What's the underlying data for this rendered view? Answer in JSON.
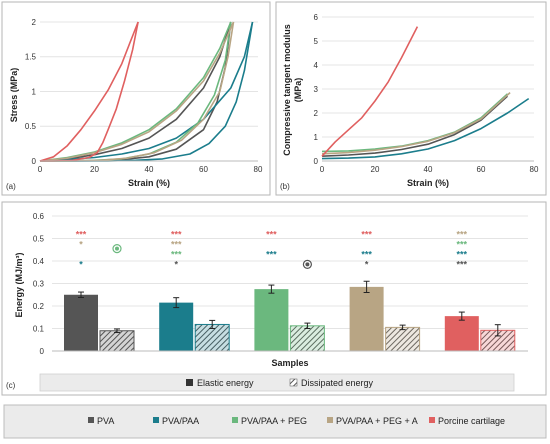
{
  "colors": {
    "PVA": "#555555",
    "PVA/PAA": "#1b7d8c",
    "PVA/PAA + PEG": "#6bb87e",
    "PVA/PAA + PEG + A": "#b8a584",
    "Porcine cartilage": "#e06060"
  },
  "chart_data": [
    {
      "id": "a",
      "type": "line",
      "panel_label": "(a)",
      "xlabel": "Strain (%)",
      "ylabel": "Stress (MPa)",
      "xlim": [
        0,
        80
      ],
      "ylim": [
        0,
        2.1
      ],
      "xticks": [
        0,
        20,
        40,
        60,
        80
      ],
      "yticks": [
        0,
        0.5,
        1,
        1.5,
        2
      ],
      "ytick_labels": [
        "0",
        "0.5",
        "1",
        "1.5",
        "2"
      ],
      "series": [
        {
          "name": "PVA",
          "curves": [
            {
              "x": [
                0,
                10,
                20,
                30,
                40,
                50,
                60,
                66,
                70
              ],
              "y": [
                0,
                0.03,
                0.09,
                0.18,
                0.33,
                0.6,
                1.05,
                1.5,
                2.0
              ]
            },
            {
              "x": [
                70,
                68,
                65,
                60,
                50,
                40,
                30,
                20,
                10,
                0
              ],
              "y": [
                2.0,
                1.35,
                0.85,
                0.45,
                0.17,
                0.06,
                0.02,
                0.005,
                0,
                0
              ]
            }
          ]
        },
        {
          "name": "PVA/PAA",
          "curves": [
            {
              "x": [
                0,
                10,
                20,
                30,
                40,
                50,
                60,
                70,
                75,
                78
              ],
              "y": [
                0,
                0.02,
                0.05,
                0.1,
                0.18,
                0.33,
                0.6,
                1.05,
                1.5,
                2.0
              ]
            },
            {
              "x": [
                78,
                75,
                72,
                68,
                62,
                55,
                45,
                35,
                25,
                12,
                0
              ],
              "y": [
                2.0,
                1.3,
                0.85,
                0.5,
                0.25,
                0.1,
                0.03,
                0.01,
                0,
                0,
                0
              ]
            }
          ]
        },
        {
          "name": "PVA/PAA + PEG",
          "curves": [
            {
              "x": [
                0,
                10,
                20,
                30,
                40,
                50,
                60,
                66,
                70
              ],
              "y": [
                0,
                0.05,
                0.13,
                0.26,
                0.45,
                0.75,
                1.2,
                1.62,
                2.0
              ]
            },
            {
              "x": [
                70,
                68,
                64,
                58,
                50,
                40,
                30,
                20,
                10,
                0
              ],
              "y": [
                2.0,
                1.45,
                0.95,
                0.55,
                0.27,
                0.1,
                0.03,
                0.01,
                0,
                0
              ]
            }
          ]
        },
        {
          "name": "PVA/PAA + PEG + A",
          "curves": [
            {
              "x": [
                0,
                10,
                20,
                30,
                40,
                50,
                60,
                66,
                71
              ],
              "y": [
                0,
                0.04,
                0.12,
                0.24,
                0.42,
                0.72,
                1.15,
                1.55,
                2.0
              ]
            },
            {
              "x": [
                71,
                69,
                66,
                60,
                52,
                42,
                32,
                22,
                10,
                0
              ],
              "y": [
                2.0,
                1.5,
                1.0,
                0.6,
                0.3,
                0.12,
                0.04,
                0.01,
                0,
                0
              ]
            }
          ]
        },
        {
          "name": "Porcine cartilage",
          "curves": [
            {
              "x": [
                0,
                5,
                10,
                15,
                20,
                25,
                30,
                33,
                36
              ],
              "y": [
                0,
                0.06,
                0.22,
                0.45,
                0.72,
                1.02,
                1.4,
                1.7,
                2.0
              ]
            },
            {
              "x": [
                36,
                34,
                31,
                28,
                25,
                23,
                21,
                18,
                12,
                5,
                0
              ],
              "y": [
                2.0,
                1.6,
                1.15,
                0.75,
                0.45,
                0.26,
                0.12,
                0.05,
                0.01,
                0,
                0
              ]
            }
          ]
        }
      ]
    },
    {
      "id": "b",
      "type": "line",
      "panel_label": "(b)",
      "xlabel": "Strain (%)",
      "ylabel": "Compressive tangent modulus (MPa)",
      "ylabel_lines": [
        "Compressive tangent modulus",
        "(MPa)"
      ],
      "xlim": [
        0,
        80
      ],
      "ylim": [
        0,
        6
      ],
      "xticks": [
        0,
        20,
        40,
        60,
        80
      ],
      "yticks": [
        0,
        1,
        2,
        3,
        4,
        5,
        6
      ],
      "series": [
        {
          "name": "PVA",
          "x": [
            0,
            10,
            20,
            30,
            40,
            50,
            60,
            70
          ],
          "y": [
            0.2,
            0.25,
            0.33,
            0.48,
            0.7,
            1.1,
            1.7,
            2.7
          ]
        },
        {
          "name": "PVA/PAA",
          "x": [
            0,
            10,
            20,
            30,
            40,
            50,
            60,
            70,
            78
          ],
          "y": [
            0.1,
            0.12,
            0.17,
            0.3,
            0.5,
            0.85,
            1.35,
            2.0,
            2.6
          ]
        },
        {
          "name": "PVA/PAA + PEG",
          "x": [
            0,
            10,
            20,
            30,
            40,
            50,
            60,
            70
          ],
          "y": [
            0.4,
            0.42,
            0.5,
            0.62,
            0.85,
            1.2,
            1.8,
            2.8
          ]
        },
        {
          "name": "PVA/PAA + PEG + A",
          "x": [
            0,
            10,
            20,
            30,
            40,
            50,
            60,
            71
          ],
          "y": [
            0.3,
            0.35,
            0.45,
            0.6,
            0.82,
            1.18,
            1.75,
            2.85
          ]
        },
        {
          "name": "Porcine cartilage",
          "x": [
            0,
            5,
            10,
            15,
            20,
            25,
            30,
            36
          ],
          "y": [
            0.2,
            0.8,
            1.3,
            1.8,
            2.5,
            3.3,
            4.3,
            5.6
          ]
        }
      ]
    },
    {
      "id": "c",
      "type": "bar",
      "panel_label": "(c)",
      "xlabel": "Samples",
      "ylabel": "Energy (MJ/m³)",
      "ylim": [
        0,
        0.6
      ],
      "yticks": [
        0,
        0.1,
        0.2,
        0.3,
        0.4,
        0.5,
        0.6
      ],
      "categories": [
        "PVA",
        "PVA/PAA",
        "PVA/PAA + PEG",
        "PVA/PAA + PEG + A",
        "Porcine cartilage"
      ],
      "series": [
        {
          "name": "Elastic energy",
          "values": [
            0.25,
            0.215,
            0.275,
            0.285,
            0.155
          ],
          "errors": [
            0.012,
            0.022,
            0.018,
            0.025,
            0.018
          ]
        },
        {
          "name": "Dissipated energy",
          "values": [
            0.09,
            0.118,
            0.112,
            0.105,
            0.092
          ],
          "errors": [
            0.008,
            0.018,
            0.012,
            0.01,
            0.025
          ]
        }
      ],
      "significance": [
        {
          "group": 0,
          "rows": [
            {
              "text": "***",
              "color": "#e06060"
            },
            {
              "text": "*",
              "color": "#b8a584"
            },
            {
              "text": "",
              "color": ""
            },
            {
              "text": "*",
              "color": "#1b7d8c"
            }
          ],
          "dissipated_marker_color": "#6bb87e"
        },
        {
          "group": 1,
          "rows": [
            {
              "text": "***",
              "color": "#e06060"
            },
            {
              "text": "***",
              "color": "#b8a584"
            },
            {
              "text": "***",
              "color": "#6bb87e"
            },
            {
              "text": "*",
              "color": "#555555"
            }
          ]
        },
        {
          "group": 2,
          "rows": [
            {
              "text": "***",
              "color": "#e06060"
            },
            {
              "text": "",
              "color": ""
            },
            {
              "text": "***",
              "color": "#1b7d8c"
            }
          ],
          "dissipated_marker_color": "#555555"
        },
        {
          "group": 3,
          "rows": [
            {
              "text": "***",
              "color": "#e06060"
            },
            {
              "text": "",
              "color": ""
            },
            {
              "text": "***",
              "color": "#1b7d8c"
            },
            {
              "text": "*",
              "color": "#555555"
            }
          ]
        },
        {
          "group": 4,
          "rows": [
            {
              "text": "***",
              "color": "#b8a584"
            },
            {
              "text": "***",
              "color": "#6bb87e"
            },
            {
              "text": "***",
              "color": "#1b7d8c"
            },
            {
              "text": "***",
              "color": "#555555"
            }
          ]
        }
      ],
      "legend": [
        "Elastic energy",
        "Dissipated energy"
      ]
    }
  ],
  "legend": {
    "items": [
      "PVA",
      "PVA/PAA",
      "PVA/PAA + PEG",
      "PVA/PAA + PEG + A",
      "Porcine cartilage"
    ]
  }
}
